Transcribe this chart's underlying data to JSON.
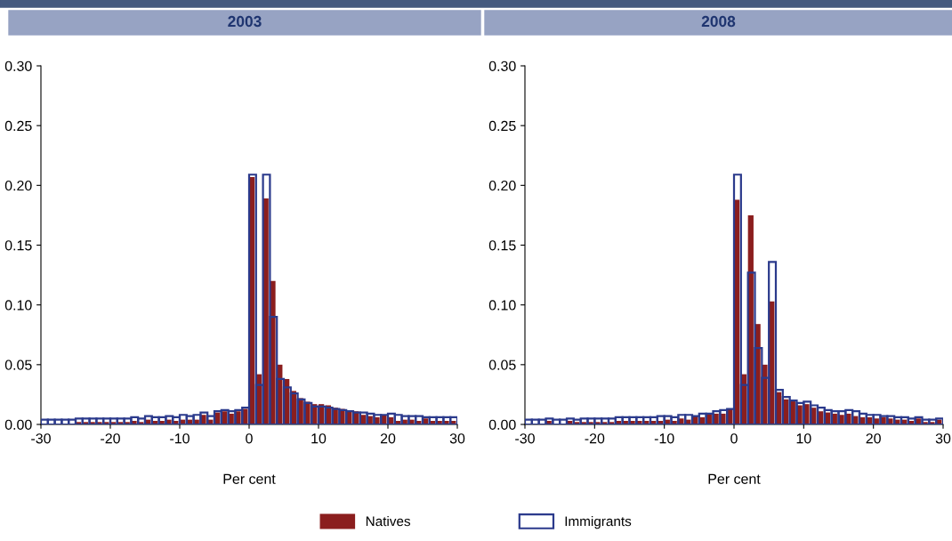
{
  "chart_data": [
    {
      "type": "histogram",
      "title": "2003",
      "xlabel": "Per cent",
      "legend": "bottom",
      "grid": false,
      "bins": [
        -30,
        -29,
        -28,
        -27,
        -26,
        -25,
        -24,
        -23,
        -22,
        -21,
        -20,
        -19,
        -18,
        -17,
        -16,
        -15,
        -14,
        -13,
        -12,
        -11,
        -10,
        -9,
        -8,
        -7,
        -6,
        -5,
        -4,
        -3,
        -2,
        -1,
        0,
        1,
        2,
        3,
        4,
        5,
        6,
        7,
        8,
        9,
        10,
        11,
        12,
        13,
        14,
        15,
        16,
        17,
        18,
        19,
        20,
        21,
        22,
        23,
        24,
        25,
        26,
        27,
        28,
        29,
        30
      ],
      "xlim": [
        -30,
        30
      ],
      "xticks": [
        -30,
        -20,
        -10,
        0,
        10,
        20,
        30
      ],
      "ylim": [
        0,
        0.3
      ],
      "yticks": [
        {
          "value": 0,
          "label": "0.00"
        },
        {
          "value": 0.05,
          "label": "0.05"
        },
        {
          "value": 0.1,
          "label": "0.10"
        },
        {
          "value": 0.15,
          "label": "0.15"
        },
        {
          "value": 0.2,
          "label": "0.20"
        },
        {
          "value": 0.25,
          "label": "0.25"
        },
        {
          "value": 0.3,
          "label": "0.30"
        }
      ],
      "series": [
        {
          "name": "Natives",
          "color": "#8b1e1e",
          "values": [
            null,
            null,
            null,
            null,
            null,
            0.002,
            0.002,
            0.002,
            0.002,
            0.002,
            0.002,
            0.002,
            0.002,
            0.003,
            0.002,
            0.004,
            0.003,
            0.003,
            0.004,
            0.003,
            0.004,
            0.004,
            0.004,
            0.008,
            0.004,
            0.01,
            0.011,
            0.009,
            0.011,
            0.013,
            0.207,
            0.042,
            0.189,
            0.12,
            0.05,
            0.038,
            0.028,
            0.022,
            0.019,
            0.017,
            0.017,
            0.016,
            0.014,
            0.013,
            0.011,
            0.011,
            0.008,
            0.007,
            0.006,
            0.008,
            0.006,
            0.003,
            0.004,
            0.004,
            0.003,
            0.005,
            0.003,
            0.003,
            0.003,
            0.003
          ]
        },
        {
          "name": "Immigrants",
          "color": "#2b3a8c",
          "values": [
            0.004,
            0.004,
            0.004,
            0.004,
            0.004,
            0.005,
            0.005,
            0.005,
            0.005,
            0.005,
            0.005,
            0.005,
            0.005,
            0.006,
            0.005,
            0.007,
            0.006,
            0.006,
            0.007,
            0.006,
            0.008,
            0.007,
            0.008,
            0.01,
            0.007,
            0.011,
            0.012,
            0.011,
            0.012,
            0.014,
            0.209,
            0.033,
            0.209,
            0.09,
            0.038,
            0.031,
            0.026,
            0.021,
            0.018,
            0.015,
            0.015,
            0.014,
            0.013,
            0.012,
            0.011,
            0.01,
            0.01,
            0.009,
            0.008,
            0.008,
            0.009,
            0.008,
            0.007,
            0.007,
            0.007,
            0.006,
            0.006,
            0.006,
            0.006,
            0.006
          ]
        }
      ]
    },
    {
      "type": "histogram",
      "title": "2008",
      "xlabel": "Per cent",
      "legend": "bottom",
      "grid": false,
      "bins": [
        -30,
        -29,
        -28,
        -27,
        -26,
        -25,
        -24,
        -23,
        -22,
        -21,
        -20,
        -19,
        -18,
        -17,
        -16,
        -15,
        -14,
        -13,
        -12,
        -11,
        -10,
        -9,
        -8,
        -7,
        -6,
        -5,
        -4,
        -3,
        -2,
        -1,
        0,
        1,
        2,
        3,
        4,
        5,
        6,
        7,
        8,
        9,
        10,
        11,
        12,
        13,
        14,
        15,
        16,
        17,
        18,
        19,
        20,
        21,
        22,
        23,
        24,
        25,
        26,
        27,
        28,
        29,
        30
      ],
      "xlim": [
        -30,
        30
      ],
      "xticks": [
        -30,
        -20,
        -10,
        0,
        10,
        20,
        30
      ],
      "ylim": [
        0,
        0.3
      ],
      "yticks": [
        {
          "value": 0,
          "label": "0.00"
        },
        {
          "value": 0.05,
          "label": "0.05"
        },
        {
          "value": 0.1,
          "label": "0.10"
        },
        {
          "value": 0.15,
          "label": "0.15"
        },
        {
          "value": 0.2,
          "label": "0.20"
        },
        {
          "value": 0.25,
          "label": "0.25"
        },
        {
          "value": 0.3,
          "label": "0.30"
        }
      ],
      "series": [
        {
          "name": "Natives",
          "color": "#8b1e1e",
          "values": [
            null,
            null,
            null,
            0.003,
            null,
            null,
            0.003,
            0.002,
            0.002,
            0.002,
            0.002,
            0.002,
            0.002,
            0.003,
            0.003,
            0.003,
            0.003,
            0.003,
            0.003,
            0.003,
            0.004,
            0.003,
            0.005,
            0.004,
            0.007,
            0.006,
            0.009,
            0.009,
            0.009,
            0.013,
            0.188,
            0.042,
            0.175,
            0.084,
            0.05,
            0.103,
            0.027,
            0.021,
            0.02,
            0.016,
            0.017,
            0.014,
            0.011,
            0.01,
            0.009,
            0.008,
            0.009,
            0.007,
            0.006,
            0.006,
            0.005,
            0.006,
            0.005,
            0.004,
            0.004,
            0.003,
            0.005,
            0.002,
            0.002,
            0.004
          ]
        },
        {
          "name": "Immigrants",
          "color": "#2b3a8c",
          "values": [
            0.004,
            0.004,
            0.004,
            0.005,
            0.004,
            0.004,
            0.005,
            0.004,
            0.005,
            0.005,
            0.005,
            0.005,
            0.005,
            0.006,
            0.006,
            0.006,
            0.006,
            0.006,
            0.006,
            0.007,
            0.007,
            0.006,
            0.008,
            0.008,
            0.007,
            0.009,
            0.009,
            0.011,
            0.012,
            0.013,
            0.209,
            0.033,
            0.127,
            0.064,
            0.039,
            0.136,
            0.029,
            0.023,
            0.02,
            0.018,
            0.019,
            0.016,
            0.014,
            0.012,
            0.011,
            0.011,
            0.012,
            0.011,
            0.009,
            0.008,
            0.008,
            0.007,
            0.007,
            0.006,
            0.006,
            0.005,
            0.006,
            0.004,
            0.004,
            0.005
          ]
        }
      ]
    }
  ]
}
